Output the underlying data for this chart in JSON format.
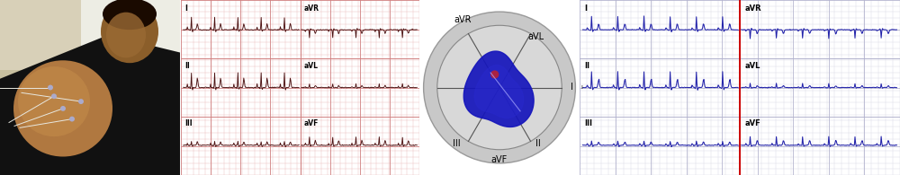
{
  "figsize": [
    10.0,
    1.95
  ],
  "dpi": 100,
  "panel_bounds": {
    "photo": [
      0.0,
      0.0,
      0.2,
      1.0
    ],
    "pink_ecg": [
      0.201,
      0.0,
      0.265,
      1.0
    ],
    "heart": [
      0.466,
      0.0,
      0.178,
      1.0
    ],
    "blue_ecg": [
      0.644,
      0.0,
      0.356,
      1.0
    ]
  },
  "photo_bg": "#c8a87a",
  "photo_skin": "#b8864a",
  "photo_dark": "#1a1a1a",
  "photo_pillow": "#e8e8e0",
  "pink_bg": "#f0a8a8",
  "pink_grid_minor": "#e8b8b8",
  "pink_grid_major": "#d08080",
  "pink_ecg_color": "#4a1010",
  "heart_bg": "#c0c0c0",
  "heart_circle_edge": "#555555",
  "heart_circle_fill": "#d0d0d0",
  "heart_inner_fill": "#c8c8c8",
  "heart_blue": "#2020cc",
  "blue_bg": "#f8f8ff",
  "blue_grid_minor": "#d0d0e0",
  "blue_grid_major": "#b0b0cc",
  "blue_ecg_color": "#2222aa",
  "red_line": "#cc0000",
  "label_fontsize_pink": 5.5,
  "label_fontsize_blue": 6,
  "label_fontsize_heart": 7
}
